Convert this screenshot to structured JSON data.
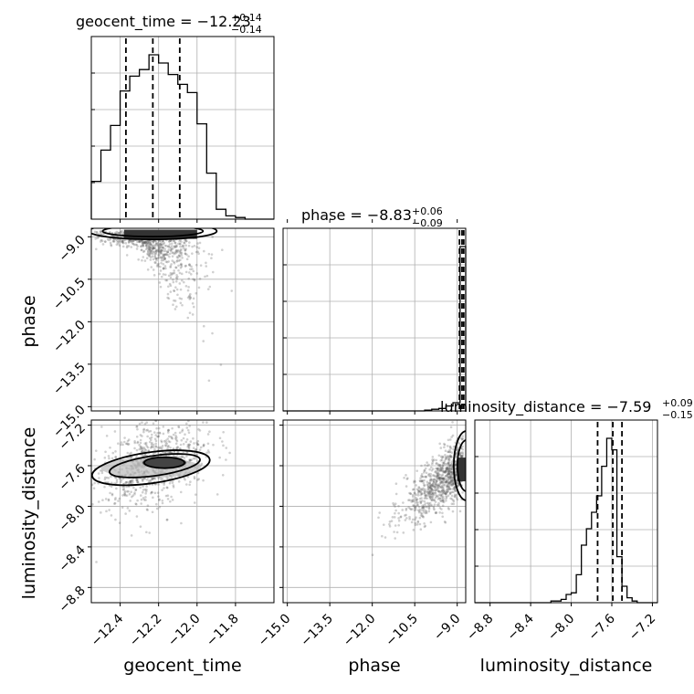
{
  "chart_data": {
    "type": "corner",
    "parameters": [
      "geocent_time",
      "phase",
      "luminosity_distance"
    ],
    "axis_labels": {
      "geocent_time": "geocent_time",
      "phase": "phase",
      "luminosity_distance": "luminosity_distance"
    },
    "ranges": {
      "geocent_time": [
        -12.55,
        -11.6
      ],
      "phase": [
        -15.15,
        -8.7
      ],
      "luminosity_distance": [
        -8.95,
        -7.15
      ]
    },
    "ticks": {
      "geocent_time": [
        "−12.4",
        "−12.2",
        "−12.0",
        "−11.8"
      ],
      "phase": [
        "−15.0",
        "−13.5",
        "−12.0",
        "−10.5",
        "−9.0"
      ],
      "luminosity_distance": [
        "−8.8",
        "−8.4",
        "−8.0",
        "−7.6",
        "−7.2"
      ]
    },
    "tick_values": {
      "geocent_time": [
        -12.4,
        -12.2,
        -12.0,
        -11.8
      ],
      "phase": [
        -15.0,
        -13.5,
        -12.0,
        -10.5,
        -9.0
      ],
      "luminosity_distance": [
        -8.8,
        -8.4,
        -8.0,
        -7.6,
        -7.2
      ]
    },
    "titles": {
      "geocent_time": {
        "main": "geocent_time = −12.23",
        "plus": "+0.14",
        "minus": "−0.14"
      },
      "phase": {
        "main": "phase = −8.83",
        "plus": "+0.06",
        "minus": "−0.09"
      },
      "luminosity_distance": {
        "main": "luminosity_distance = −7.59",
        "plus": "+0.09",
        "minus": "−0.15"
      }
    },
    "quantiles": {
      "geocent_time": [
        -12.37,
        -12.23,
        -12.09
      ],
      "phase": [
        -8.92,
        -8.83,
        -8.77
      ],
      "luminosity_distance": [
        -7.74,
        -7.59,
        -7.5
      ]
    },
    "histograms": {
      "geocent_time": {
        "edges": [
          -12.55,
          -12.5,
          -12.45,
          -12.4,
          -12.35,
          -12.3,
          -12.25,
          -12.2,
          -12.15,
          -12.1,
          -12.05,
          -12.0,
          -11.95,
          -11.9,
          -11.85,
          -11.8,
          -11.75,
          -11.7,
          -11.65,
          -11.6
        ],
        "counts": [
          0.23,
          0.42,
          0.57,
          0.78,
          0.87,
          0.91,
          1.0,
          0.95,
          0.88,
          0.82,
          0.77,
          0.58,
          0.28,
          0.06,
          0.02,
          0.01,
          0.0,
          0.0,
          0.0
        ]
      },
      "phase": {
        "edges": [
          -15.15,
          -14.9,
          -14.65,
          -14.4,
          -14.15,
          -13.9,
          -13.65,
          -13.4,
          -13.15,
          -12.9,
          -12.65,
          -12.4,
          -12.15,
          -11.9,
          -11.65,
          -11.4,
          -11.15,
          -10.9,
          -10.65,
          -10.4,
          -10.15,
          -9.9,
          -9.65,
          -9.4,
          -9.15,
          -8.9,
          -8.7
        ],
        "counts": [
          0,
          0,
          0,
          0,
          0,
          0,
          0,
          0,
          0,
          0,
          0,
          0,
          0,
          0,
          0,
          0,
          0,
          0,
          0,
          0,
          0.005,
          0.01,
          0.015,
          0.03,
          0.05,
          1.0
        ]
      },
      "luminosity_distance": {
        "edges": [
          -8.95,
          -8.9,
          -8.85,
          -8.8,
          -8.75,
          -8.7,
          -8.65,
          -8.6,
          -8.55,
          -8.5,
          -8.45,
          -8.4,
          -8.35,
          -8.3,
          -8.25,
          -8.2,
          -8.15,
          -8.1,
          -8.05,
          -8.0,
          -7.95,
          -7.9,
          -7.85,
          -7.8,
          -7.75,
          -7.7,
          -7.65,
          -7.6,
          -7.55,
          -7.5,
          -7.45,
          -7.4,
          -7.35,
          -7.3,
          -7.25,
          -7.2,
          -7.15
        ],
        "counts": [
          0,
          0,
          0,
          0,
          0,
          0,
          0,
          0,
          0,
          0,
          0,
          0,
          0,
          0,
          0,
          0.01,
          0.01,
          0.02,
          0.05,
          0.06,
          0.17,
          0.35,
          0.45,
          0.55,
          0.65,
          0.83,
          1.0,
          0.93,
          0.28,
          0.1,
          0.03,
          0.01,
          0,
          0,
          0,
          0
        ]
      }
    }
  }
}
